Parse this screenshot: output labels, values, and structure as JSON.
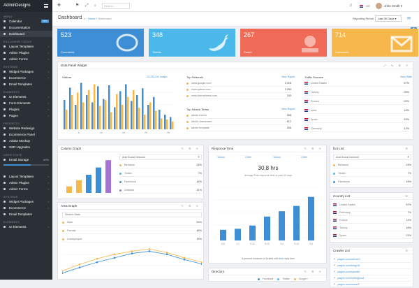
{
  "brand": {
    "name": "AdminDesigns"
  },
  "topbar": {
    "icons": [
      "menu-icon",
      "fullscreen-icon",
      "flag-icon",
      "expand-icon"
    ],
    "search_placeholder": "Search...",
    "language": "US",
    "user": "John Smith",
    "notif_count": "4"
  },
  "sidebar": {
    "sections": [
      {
        "heading": "MENU",
        "items": [
          {
            "label": "Calendar",
            "badge": "New"
          },
          {
            "label": "Documentation"
          },
          {
            "label": "Dashboard",
            "active": true
          }
        ]
      },
      {
        "heading": "EXCLUSIVE TOOLS",
        "items": [
          {
            "label": "Layout Templates",
            "arrow": true
          },
          {
            "label": "Admin Plugins",
            "arrow": true
          },
          {
            "label": "Admin Forms",
            "arrow": true
          }
        ]
      },
      {
        "heading": "SYSTEMS",
        "items": [
          {
            "label": "Widget Packages",
            "arrow": true
          },
          {
            "label": "Ecommerce",
            "arrow": true
          },
          {
            "label": "Email Templates"
          }
        ]
      },
      {
        "heading": "ELEMENTS",
        "items": [
          {
            "label": "UI Elements",
            "arrow": true
          },
          {
            "label": "Form Elements",
            "arrow": true
          },
          {
            "label": "Plugins",
            "arrow": true
          },
          {
            "label": "Pages",
            "arrow": true
          }
        ]
      },
      {
        "heading": "PROJECTS",
        "items": [
          {
            "label": "Website Redesign"
          },
          {
            "label": "Ecommerce Panel"
          },
          {
            "label": "Adobe Mockup"
          },
          {
            "label": "SSD Upgrades"
          }
        ]
      },
      {
        "heading": "USER STATS",
        "items": [
          {
            "label": "Email Storage",
            "value": "60%"
          }
        ]
      },
      {
        "heading": "",
        "items": [
          {
            "label": "Layout Templates",
            "arrow": true
          },
          {
            "label": "Admin Plugins",
            "arrow": true
          },
          {
            "label": "Admin Forms",
            "arrow": true
          }
        ]
      },
      {
        "heading": "SYSTEMS",
        "items": [
          {
            "label": "Widget Packages",
            "arrow": true
          },
          {
            "label": "Ecommerce",
            "arrow": true
          },
          {
            "label": "Email Templates"
          }
        ]
      },
      {
        "heading": "ELEMENTS",
        "items": [
          {
            "label": "UI Elements",
            "arrow": true
          }
        ]
      }
    ]
  },
  "header": {
    "title": "Dashboard",
    "crumb_home": "Home",
    "crumb_current": "Dashboard",
    "reporting_label": "Reporting Period",
    "period": "Last 30 Days"
  },
  "tiles": [
    {
      "number": "523",
      "label": "Comments",
      "color": "#3d8ed4",
      "icon": "comment-icon"
    },
    {
      "number": "348",
      "label": "Tweets",
      "color": "#4ab9e9",
      "icon": "twitter-icon"
    },
    {
      "number": "267",
      "label": "Reach",
      "color": "#ef6a57",
      "icon": "reach-icon"
    },
    {
      "number": "714",
      "label": "Comments",
      "color": "#f7b84b",
      "icon": "mail-icon"
    }
  ],
  "data_panel": {
    "title": "Data Panel Widget",
    "visitors": {
      "label": "Visitors",
      "total": "13,253,211 unique"
    },
    "chart_data": {
      "type": "bar",
      "x_ticks": [
        "5",
        "10",
        "15",
        "20",
        "25"
      ],
      "series": [
        {
          "color": "#3d8ed4",
          "values": [
            60,
            85,
            50,
            95,
            70,
            55,
            88,
            62,
            90,
            45,
            78,
            92,
            58,
            70,
            84,
            50,
            66,
            40,
            30,
            25
          ]
        },
        {
          "color": "#f7b84b",
          "values": [
            40,
            70,
            75,
            55,
            80,
            92,
            48,
            60,
            35,
            72,
            50,
            66,
            80,
            44,
            30,
            55,
            38,
            22,
            20,
            16
          ]
        }
      ]
    },
    "referrals": {
      "label": "Top Referrals",
      "link": "View Report",
      "rows": [
        {
          "name": "www.google.com",
          "value": "1,926"
        },
        {
          "name": "www.yahoo.com",
          "value": "1,254"
        },
        {
          "name": "www.themeforest.com",
          "value": "783"
        }
      ]
    },
    "search_terms": {
      "label": "Top Search Terms",
      "link": "View Report",
      "rows": [
        {
          "name": "admin theme",
          "value": "988"
        },
        {
          "name": "admin dashboard",
          "value": "612"
        },
        {
          "name": "admin template",
          "value": "256"
        }
      ]
    },
    "traffic": {
      "label": "Traffic Sources",
      "link": "View Stats",
      "rows": [
        {
          "name": "United States",
          "value": "57%"
        },
        {
          "name": "Turkey",
          "value": "25%"
        },
        {
          "name": "France",
          "value": "22%"
        },
        {
          "name": "India",
          "value": "18%"
        },
        {
          "name": "Spain",
          "value": "15%"
        },
        {
          "name": "Germany",
          "value": "12%"
        }
      ]
    }
  },
  "column_graph": {
    "title": "Column Graph",
    "add_label": "Add Social Network",
    "chart_data": {
      "type": "bar",
      "values": [
        18,
        35,
        50,
        70,
        90
      ],
      "colors": [
        "#f7b84b",
        "#f7b84b",
        "#3d8ed4",
        "#3d8ed4",
        "#a374d6"
      ]
    },
    "rows": [
      {
        "name": "Behance",
        "value": "24%",
        "color": "#f7b84b"
      },
      {
        "name": "Twitter",
        "value": "7%",
        "color": "#4ab9e9"
      },
      {
        "name": "Facebook",
        "value": "16%",
        "color": "#3d8ed4"
      },
      {
        "name": "Dribbble",
        "value": "21%",
        "color": "#a374d6"
      }
    ]
  },
  "area_graph": {
    "title": "Area Graph",
    "search_label": "Search Stats",
    "rows": [
      {
        "name": "Male",
        "value": "54%"
      },
      {
        "name": "Female",
        "value": "46%"
      },
      {
        "name": "Unemployed",
        "value": "15%"
      }
    ],
    "chart_data": {
      "type": "line",
      "series": [
        {
          "color": "#f7b84b",
          "values": [
            10,
            25,
            38,
            48,
            55,
            60,
            52,
            40,
            30
          ]
        },
        {
          "color": "#3d8ed4",
          "values": [
            5,
            18,
            30,
            40,
            50,
            55,
            48,
            36,
            26
          ]
        }
      ]
    }
  },
  "response_time": {
    "title": "Response Time",
    "tabs": [
      "Yahoo",
      "CNN",
      "Yahoo",
      "CNN"
    ],
    "value": "30.8 hrs",
    "subtitle": "Average First response time to past 30 days",
    "caption_pre": "A percent measure of tickets with",
    "caption_link": "first",
    "caption_post": "reply time",
    "chart_data": {
      "type": "bar",
      "categories": [
        "6-8",
        "7-1",
        "9-12",
        "9-12",
        "3-4",
        "9-12",
        "3-5"
      ],
      "values": [
        20,
        22,
        28,
        45,
        55,
        65,
        82
      ],
      "color": "#3d8ed4"
    }
  },
  "directors": {
    "title": "Directors",
    "legend": [
      "Facebook",
      "Twitter",
      "Google+"
    ]
  },
  "dot_list": {
    "title": "Dot List",
    "add_label": "Add Social Network",
    "rows": [
      {
        "name": "Behance",
        "value": "24%",
        "color": "#f7b84b"
      },
      {
        "name": "Twitter",
        "value": "7%",
        "color": "#4ab9e9"
      },
      {
        "name": "Facebook",
        "value": "16%",
        "color": "#3d8ed4"
      }
    ]
  },
  "country_list": {
    "title": "Country List",
    "rows": [
      {
        "name": "United States",
        "value": "57%"
      },
      {
        "name": "Germany",
        "value": "7%"
      },
      {
        "name": "France",
        "value": "14%"
      },
      {
        "name": "Turkey",
        "value": "16%"
      },
      {
        "name": "Spain",
        "value": "21%"
      }
    ]
  },
  "crawler_list": {
    "title": "Crawler List",
    "rows": [
      {
        "name": "pages.com/article/1"
      },
      {
        "name": "pages.com/blog/15"
      },
      {
        "name": "pages.com/spoofer"
      },
      {
        "name": "pages.com/settings/13"
      },
      {
        "name": "pages.com/news/1"
      }
    ]
  }
}
